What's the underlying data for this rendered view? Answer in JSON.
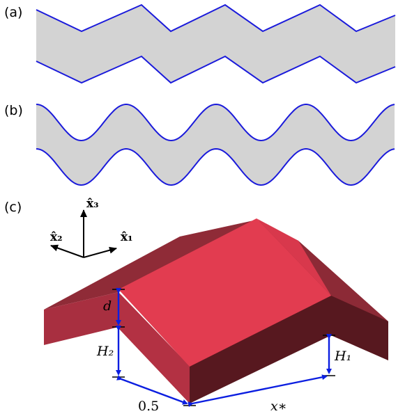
{
  "panels": {
    "a": {
      "label": "(a)"
    },
    "b": {
      "label": "(b)"
    },
    "c": {
      "label": "(c)"
    }
  },
  "axes": {
    "x3": "x̂₃",
    "x2": "x̂₂",
    "x1": "x̂₁"
  },
  "annotations": {
    "d": "d",
    "H2": "H₂",
    "H1": "H₁",
    "half": "0.5",
    "xstar": "x∗"
  },
  "colors": {
    "channel_fill": "#d3d3d3",
    "boundary": "#1a1adb",
    "roof_top": "#e23c50",
    "roof_side_dark": "#57181f",
    "roof_side_mid": "#8c2a36",
    "roof_side_left": "#a72f3f",
    "dimension_arrow": "#0b1ee0"
  }
}
